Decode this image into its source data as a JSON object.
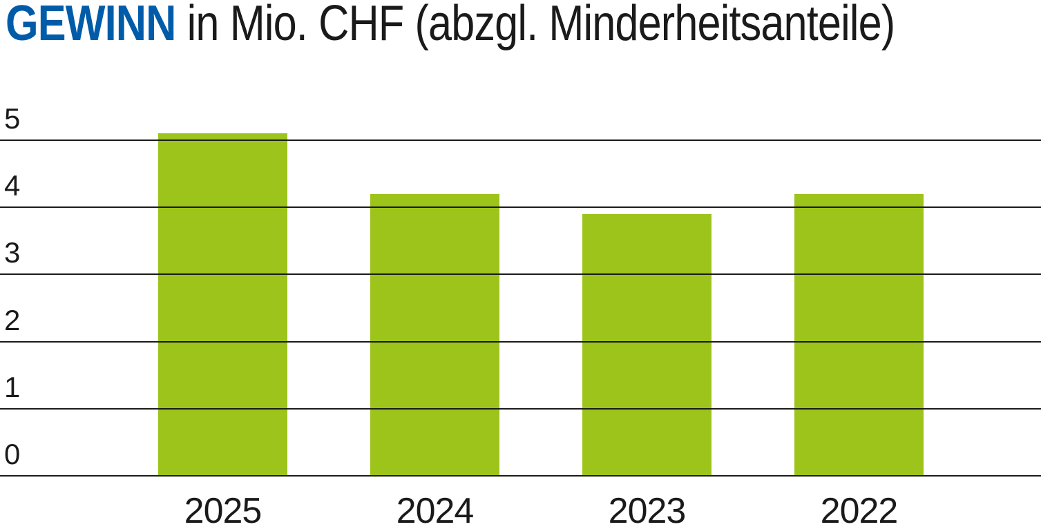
{
  "title": {
    "highlight": "GEWINN",
    "rest": " in Mio. CHF (abzgl. Minderheitsanteile)"
  },
  "chart_data": {
    "type": "bar",
    "title": "GEWINN in Mio. CHF (abzgl. Minderheitsanteile)",
    "categories": [
      "2025",
      "2024",
      "2023",
      "2022"
    ],
    "values": [
      5.1,
      4.2,
      3.9,
      4.2
    ],
    "xlabel": "",
    "ylabel": "",
    "ylim": [
      0,
      5
    ],
    "yticks": [
      5,
      4,
      3,
      2,
      1,
      0
    ],
    "grid": "horizontal-full-width",
    "legend": "none",
    "colors": {
      "bar": "#9DC41B",
      "title_highlight": "#005CA9",
      "text": "#1A1A1A",
      "gridline": "#1A1A1A",
      "background": "#FFFFFF"
    }
  }
}
